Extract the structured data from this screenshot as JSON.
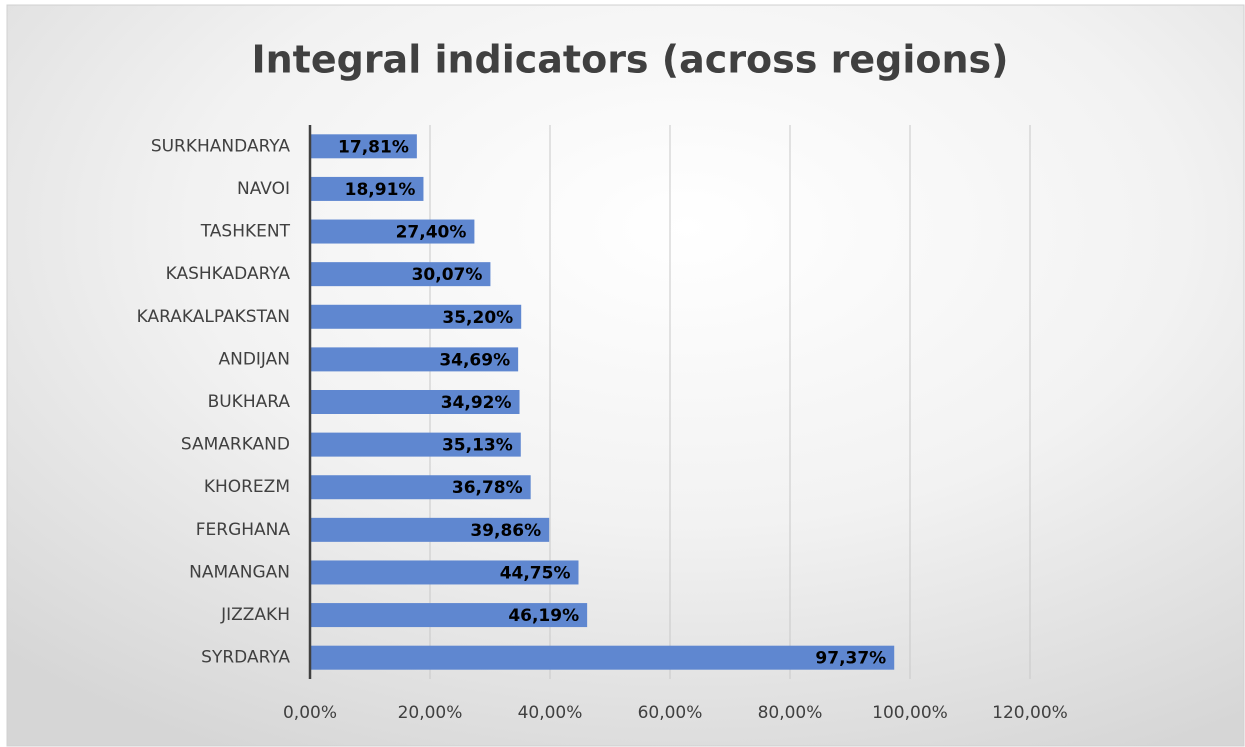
{
  "chart_data": {
    "type": "bar",
    "orientation": "horizontal",
    "title": "Integral indicators (across regions)",
    "categories": [
      "SURKHANDARYA",
      "NAVOI",
      "TASHKENT",
      "KASHKADARYA",
      "KARAKALPAKSTAN",
      "ANDIJAN",
      "BUKHARA",
      "SAMARKAND",
      "KHOREZM",
      "FERGHANA",
      "NAMANGAN",
      "JIZZAKH",
      "SYRDARYA"
    ],
    "values": [
      17.81,
      18.91,
      27.4,
      30.07,
      35.2,
      34.69,
      34.92,
      35.13,
      36.78,
      39.86,
      44.75,
      46.19,
      97.37
    ],
    "value_labels": [
      "17,81%",
      "18,91%",
      "27,40%",
      "30,07%",
      "35,20%",
      "34,69%",
      "34,92%",
      "35,13%",
      "36,78%",
      "39,86%",
      "44,75%",
      "46,19%",
      "97,37%"
    ],
    "color": "#5f87d0",
    "xlim": [
      0,
      120
    ],
    "xticks": [
      {
        "value": 0,
        "label": "0,00%"
      },
      {
        "value": 20,
        "label": "20,00%"
      },
      {
        "value": 40,
        "label": "40,00%"
      },
      {
        "value": 60,
        "label": "60,00%"
      },
      {
        "value": 80,
        "label": "80,00%"
      },
      {
        "value": 100,
        "label": "100,00%"
      },
      {
        "value": 120,
        "label": "120,00%"
      }
    ],
    "grid": true
  }
}
